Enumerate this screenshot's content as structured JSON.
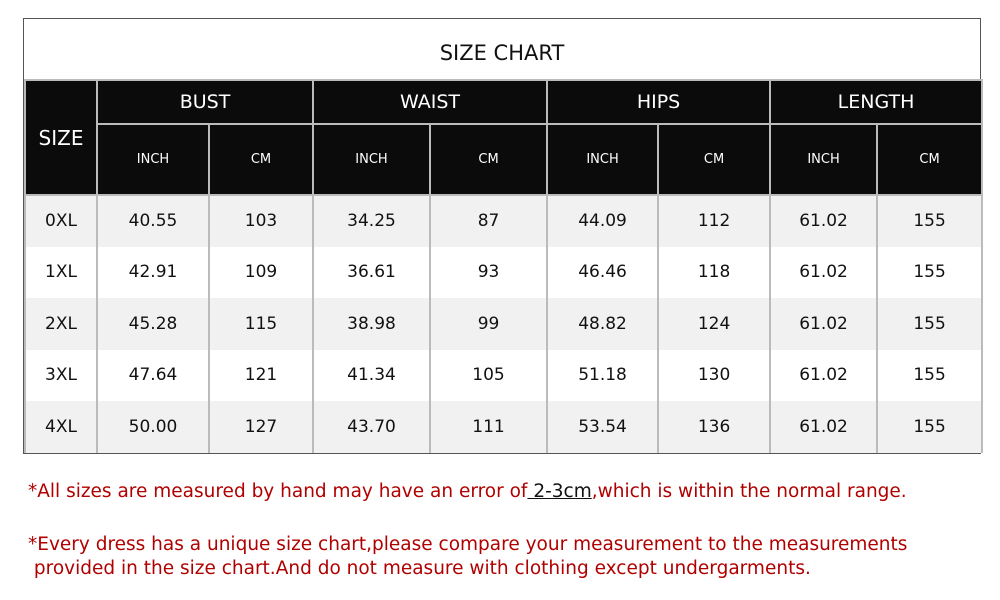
{
  "title": "SIZE CHART",
  "size_header": "SIZE",
  "groups": [
    "BUST",
    "WAIST",
    "HIPS",
    "LENGTH"
  ],
  "units": [
    "INCH",
    "CM"
  ],
  "rows": [
    {
      "size": "0XL",
      "values": [
        "40.55",
        "103",
        "34.25",
        "87",
        "44.09",
        "112",
        "61.02",
        "155"
      ]
    },
    {
      "size": "1XL",
      "values": [
        "42.91",
        "109",
        "36.61",
        "93",
        "46.46",
        "118",
        "61.02",
        "155"
      ]
    },
    {
      "size": "2XL",
      "values": [
        "45.28",
        "115",
        "38.98",
        "99",
        "48.82",
        "124",
        "61.02",
        "155"
      ]
    },
    {
      "size": "3XL",
      "values": [
        "47.64",
        "121",
        "41.34",
        "105",
        "51.18",
        "130",
        "61.02",
        "155"
      ]
    },
    {
      "size": "4XL",
      "values": [
        "50.00",
        "127",
        "43.70",
        "111",
        "53.54",
        "136",
        "61.02",
        "155"
      ]
    }
  ],
  "notes": {
    "note1_pre": "*All sizes are measured by hand may have an error of",
    "note1_highlight": " 2-3cm",
    "note1_post": ",which is within the normal range.",
    "note2_line1": "*Every dress has a unique size chart,please compare your measurement to the measurements",
    "note2_line2": " provided in the size chart.And do not measure with clothing except undergarments."
  },
  "colors": {
    "header_bg": "#0b0b0b",
    "note_red": "#b00000",
    "row_alt": "#f1f1f1"
  }
}
